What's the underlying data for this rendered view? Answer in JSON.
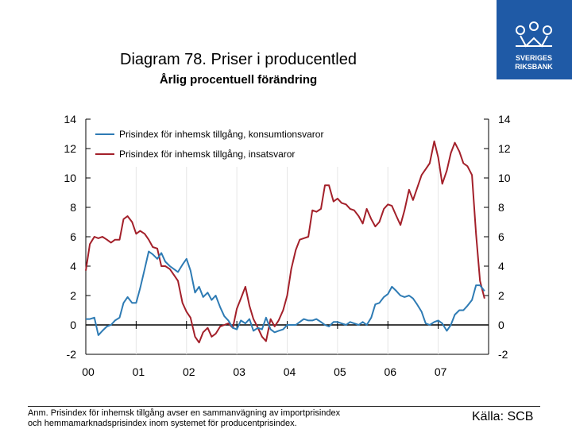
{
  "header": {
    "title": "Diagram 78. Priser i producentled",
    "subtitle": "Årlig procentuell förändring",
    "logo_text_line1": "SVERIGES",
    "logo_text_line2": "RIKSBANK"
  },
  "chart_data": {
    "type": "line",
    "x_tick_labels": [
      "00",
      "01",
      "02",
      "03",
      "04",
      "05",
      "06",
      "07"
    ],
    "y_ticks": [
      -2,
      0,
      2,
      4,
      6,
      8,
      10,
      12,
      14
    ],
    "y_tick_labels": [
      "-2",
      "0",
      "2",
      "4",
      "6",
      "8",
      "10",
      "12",
      "14"
    ],
    "ylim": [
      -2,
      14
    ],
    "xlim": [
      2000.0,
      2008.0
    ],
    "legend_position": "top-left",
    "series": [
      {
        "name": "Prisindex för inhemsk tillgång, konsumtionsvaror",
        "color": "#2e7bb4",
        "x": [
          2000.0,
          2000.08,
          2000.17,
          2000.25,
          2000.33,
          2000.42,
          2000.5,
          2000.58,
          2000.67,
          2000.75,
          2000.83,
          2000.92,
          2001.0,
          2001.08,
          2001.17,
          2001.25,
          2001.33,
          2001.42,
          2001.5,
          2001.58,
          2001.67,
          2001.75,
          2001.83,
          2001.92,
          2002.0,
          2002.08,
          2002.17,
          2002.25,
          2002.33,
          2002.42,
          2002.5,
          2002.58,
          2002.67,
          2002.75,
          2002.83,
          2002.92,
          2003.0,
          2003.08,
          2003.17,
          2003.25,
          2003.33,
          2003.42,
          2003.5,
          2003.58,
          2003.67,
          2003.75,
          2003.83,
          2003.92,
          2004.0,
          2004.08,
          2004.17,
          2004.25,
          2004.33,
          2004.42,
          2004.5,
          2004.58,
          2004.67,
          2004.75,
          2004.83,
          2004.92,
          2005.0,
          2005.08,
          2005.17,
          2005.25,
          2005.33,
          2005.42,
          2005.5,
          2005.58,
          2005.67,
          2005.75,
          2005.83,
          2005.92,
          2006.0,
          2006.08,
          2006.17,
          2006.25,
          2006.33,
          2006.42,
          2006.5,
          2006.58,
          2006.67,
          2006.75,
          2006.83,
          2006.92,
          2007.0,
          2007.08,
          2007.17,
          2007.25,
          2007.33,
          2007.42,
          2007.5,
          2007.58,
          2007.67,
          2007.75,
          2007.83,
          2007.92
        ],
        "values": [
          0.4,
          0.4,
          0.5,
          -0.7,
          -0.4,
          -0.1,
          0.0,
          0.3,
          0.5,
          1.5,
          1.9,
          1.5,
          1.5,
          2.5,
          3.8,
          5.0,
          4.8,
          4.5,
          4.9,
          4.3,
          4.0,
          3.8,
          3.6,
          4.1,
          4.5,
          3.7,
          2.2,
          2.6,
          1.9,
          2.2,
          1.7,
          2.0,
          1.2,
          0.6,
          0.3,
          -0.2,
          -0.3,
          0.3,
          0.1,
          0.4,
          -0.4,
          -0.2,
          -0.3,
          0.5,
          -0.3,
          -0.5,
          -0.4,
          -0.3,
          0.0,
          0.0,
          0.0,
          0.2,
          0.4,
          0.3,
          0.3,
          0.4,
          0.2,
          0.0,
          -0.1,
          0.2,
          0.2,
          0.1,
          0.0,
          0.2,
          0.1,
          0.0,
          0.2,
          0.0,
          0.5,
          1.4,
          1.5,
          1.9,
          2.1,
          2.6,
          2.3,
          2.0,
          1.9,
          2.0,
          1.8,
          1.4,
          0.9,
          0.1,
          0.0,
          0.2,
          0.3,
          0.1,
          -0.4,
          0.0,
          0.7,
          1.0,
          1.0,
          1.3,
          1.7,
          2.7,
          2.7,
          2.3
        ]
      },
      {
        "name": "Prisindex för inhemsk tillgång, insatsvaror",
        "color": "#a3202a",
        "x": [
          2000.0,
          2000.08,
          2000.17,
          2000.25,
          2000.33,
          2000.42,
          2000.5,
          2000.58,
          2000.67,
          2000.75,
          2000.83,
          2000.92,
          2001.0,
          2001.08,
          2001.17,
          2001.25,
          2001.33,
          2001.42,
          2001.5,
          2001.58,
          2001.67,
          2001.75,
          2001.83,
          2001.92,
          2002.0,
          2002.08,
          2002.17,
          2002.25,
          2002.33,
          2002.42,
          2002.5,
          2002.58,
          2002.67,
          2002.75,
          2002.83,
          2002.92,
          2003.0,
          2003.08,
          2003.17,
          2003.25,
          2003.33,
          2003.42,
          2003.5,
          2003.58,
          2003.67,
          2003.75,
          2003.83,
          2003.92,
          2004.0,
          2004.08,
          2004.17,
          2004.25,
          2004.33,
          2004.42,
          2004.5,
          2004.58,
          2004.67,
          2004.75,
          2004.83,
          2004.92,
          2005.0,
          2005.08,
          2005.17,
          2005.25,
          2005.33,
          2005.42,
          2005.5,
          2005.58,
          2005.67,
          2005.75,
          2005.83,
          2005.92,
          2006.0,
          2006.08,
          2006.17,
          2006.25,
          2006.33,
          2006.42,
          2006.5,
          2006.58,
          2006.67,
          2006.75,
          2006.83,
          2006.92,
          2007.0,
          2007.08,
          2007.17,
          2007.25,
          2007.33,
          2007.42,
          2007.5,
          2007.58,
          2007.67,
          2007.75,
          2007.83,
          2007.92
        ],
        "values": [
          3.7,
          5.5,
          6.0,
          5.9,
          6.0,
          5.8,
          5.6,
          5.8,
          5.8,
          7.2,
          7.4,
          7.0,
          6.2,
          6.4,
          6.2,
          5.8,
          5.3,
          5.2,
          4.0,
          4.0,
          3.8,
          3.4,
          3.0,
          1.5,
          0.9,
          0.5,
          -0.8,
          -1.2,
          -0.5,
          -0.2,
          -0.8,
          -0.6,
          -0.1,
          0.0,
          0.1,
          -0.2,
          1.1,
          1.8,
          2.6,
          1.3,
          0.4,
          -0.2,
          -0.8,
          -1.1,
          0.4,
          -0.1,
          0.3,
          1.0,
          2.0,
          3.8,
          5.1,
          5.8,
          5.9,
          6.0,
          7.8,
          7.7,
          7.9,
          9.5,
          9.5,
          8.4,
          8.6,
          8.3,
          8.2,
          7.9,
          7.8,
          7.4,
          6.9,
          7.9,
          7.2,
          6.7,
          7.0,
          7.9,
          8.2,
          8.1,
          7.4,
          6.8,
          7.8,
          9.2,
          8.5,
          9.3,
          10.2,
          10.6,
          11.0,
          12.5,
          11.4,
          9.6,
          10.5,
          11.7,
          12.4,
          11.8,
          11.0,
          10.8,
          10.2,
          6.2,
          3.0,
          1.8
        ]
      }
    ]
  },
  "footer": {
    "note_line1": "Anm. Prisindex för inhemsk tillgång avser en sammanvägning av importprisindex",
    "note_line2": "och hemmamarknadsprisindex inom systemet för producentprisindex.",
    "source": "Källa: SCB"
  },
  "colors": {
    "consumer": "#2e7bb4",
    "input": "#a3202a",
    "logo_bg": "#1f5aa6"
  }
}
